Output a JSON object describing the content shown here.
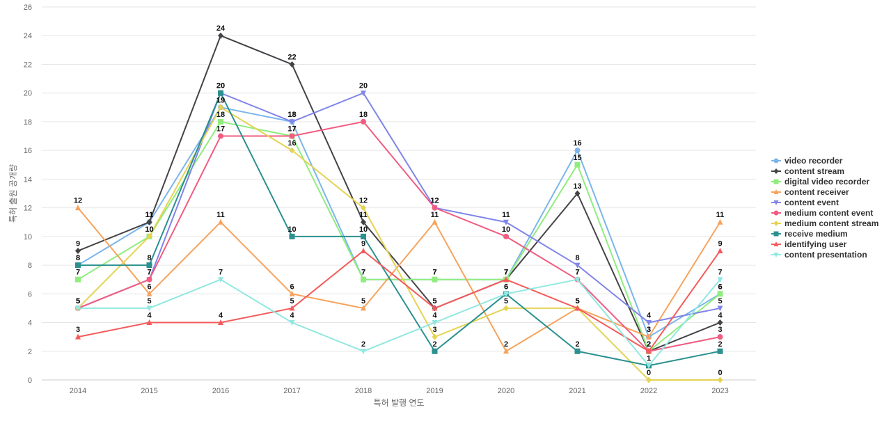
{
  "chart_data": {
    "type": "line",
    "xlabel": "특허 발행 연도",
    "ylabel": "특허 출원 공개량",
    "ylim": [
      0,
      26
    ],
    "y_ticks": [
      0,
      2,
      4,
      6,
      8,
      10,
      12,
      14,
      16,
      18,
      20,
      22,
      24,
      26
    ],
    "categories": [
      "2014",
      "2015",
      "2016",
      "2017",
      "2018",
      "2019",
      "2020",
      "2021",
      "2022",
      "2023"
    ],
    "grid": "horizontal",
    "legend_position": "right",
    "data_labels": true,
    "series": [
      {
        "name": "video recorder",
        "color": "#7cb5ec",
        "marker": "circle",
        "values": [
          8,
          11,
          19,
          18,
          7,
          7,
          7,
          16,
          3,
          6
        ]
      },
      {
        "name": "content stream",
        "color": "#434348",
        "marker": "diamond",
        "values": [
          9,
          11,
          24,
          22,
          11,
          5,
          7,
          13,
          2,
          4
        ]
      },
      {
        "name": "digital video recorder",
        "color": "#90ed7d",
        "marker": "square",
        "values": [
          7,
          10,
          18,
          17,
          7,
          7,
          7,
          15,
          2,
          6
        ]
      },
      {
        "name": "content receiver",
        "color": "#f7a35c",
        "marker": "triangle",
        "values": [
          12,
          6,
          11,
          6,
          5,
          11,
          2,
          5,
          3,
          11
        ]
      },
      {
        "name": "content event",
        "color": "#8085e9",
        "marker": "triangle-down",
        "values": [
          5,
          7,
          20,
          18,
          20,
          12,
          11,
          8,
          4,
          5
        ]
      },
      {
        "name": "medium content event",
        "color": "#f15c80",
        "marker": "circle",
        "values": [
          5,
          7,
          17,
          17,
          18,
          12,
          10,
          7,
          2,
          3
        ]
      },
      {
        "name": "medium content stream",
        "color": "#e4d354",
        "marker": "diamond",
        "values": [
          5,
          10,
          19,
          16,
          12,
          3,
          5,
          5,
          0,
          0
        ]
      },
      {
        "name": "receive medium",
        "color": "#2b908f",
        "marker": "square",
        "values": [
          8,
          8,
          20,
          10,
          10,
          2,
          6,
          2,
          1,
          2
        ]
      },
      {
        "name": "identifying user",
        "color": "#f45b5b",
        "marker": "triangle",
        "values": [
          3,
          4,
          4,
          5,
          9,
          5,
          7,
          5,
          2,
          9
        ]
      },
      {
        "name": "content presentation",
        "color": "#91e8e1",
        "marker": "triangle-down",
        "values": [
          5,
          5,
          7,
          4,
          2,
          4,
          6,
          7,
          1,
          7
        ]
      }
    ]
  }
}
